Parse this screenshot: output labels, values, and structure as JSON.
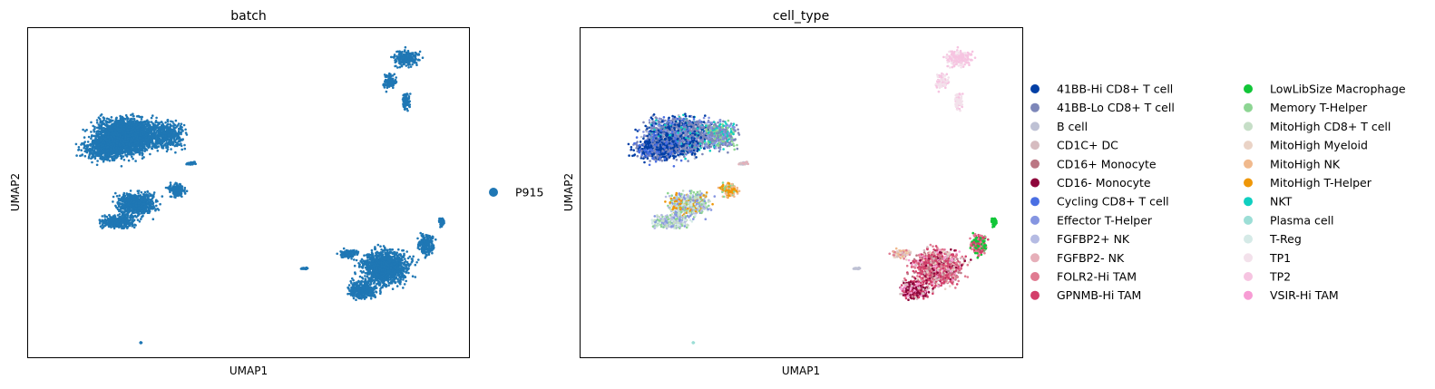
{
  "chart_data": [
    {
      "type": "scatter",
      "title": "batch",
      "xlabel": "UMAP1",
      "ylabel": "UMAP2",
      "grid": false,
      "legend_placement": "right",
      "series": [
        {
          "name": "P915",
          "color": "#1f77b4"
        }
      ]
    },
    {
      "type": "scatter",
      "title": "cell_type",
      "xlabel": "UMAP1",
      "ylabel": "UMAP2",
      "grid": false,
      "legend_placement": "right",
      "legend_columns": 2,
      "series": [
        {
          "name": "41BB-Hi CD8+ T cell",
          "color": "#023fa5"
        },
        {
          "name": "41BB-Lo CD8+ T cell",
          "color": "#7d87b9"
        },
        {
          "name": "B cell",
          "color": "#bec1d4"
        },
        {
          "name": "CD1C+ DC",
          "color": "#d6bcc0"
        },
        {
          "name": "CD16+ Monocyte",
          "color": "#bb7784"
        },
        {
          "name": "CD16- Monocyte",
          "color": "#8e063b"
        },
        {
          "name": "Cycling CD8+ T cell",
          "color": "#4a6fe3"
        },
        {
          "name": "Effector T-Helper",
          "color": "#8595e1"
        },
        {
          "name": "FGFBP2+ NK",
          "color": "#b5bbe3"
        },
        {
          "name": "FGFBP2- NK",
          "color": "#e6afb9"
        },
        {
          "name": "FOLR2-Hi TAM",
          "color": "#e07b91"
        },
        {
          "name": "GPNMB-Hi TAM",
          "color": "#d33f6a"
        },
        {
          "name": "LowLibSize Macrophage",
          "color": "#11c638"
        },
        {
          "name": "Memory T-Helper",
          "color": "#8dd593"
        },
        {
          "name": "MitoHigh CD8+ T cell",
          "color": "#c6dec7"
        },
        {
          "name": "MitoHigh Myeloid",
          "color": "#ead3c6"
        },
        {
          "name": "MitoHigh NK",
          "color": "#f0b98d"
        },
        {
          "name": "MitoHigh T-Helper",
          "color": "#ef9708"
        },
        {
          "name": "NKT",
          "color": "#0fcfc0"
        },
        {
          "name": "Plasma cell",
          "color": "#9cded6"
        },
        {
          "name": "T-Reg",
          "color": "#d5eae7"
        },
        {
          "name": "TP1",
          "color": "#f3e1eb"
        },
        {
          "name": "TP2",
          "color": "#f6c4e1"
        },
        {
          "name": "VSIR-Hi TAM",
          "color": "#f79cd4"
        }
      ]
    }
  ]
}
